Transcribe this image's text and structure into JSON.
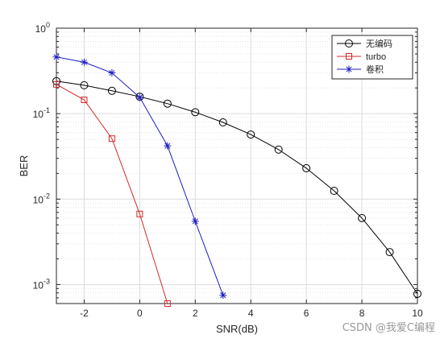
{
  "chart_data": {
    "type": "line",
    "xlabel": "SNR(dB)",
    "ylabel": "BER",
    "xlim": [
      -3,
      10
    ],
    "ylim": [
      0.0006,
      1
    ],
    "yscale": "log",
    "grid": true,
    "legend_position": "top-right",
    "x_ticks": [
      -2,
      0,
      2,
      4,
      6,
      8,
      10
    ],
    "y_ticks": [
      {
        "value": 0.001,
        "base": "10",
        "exp": "-3"
      },
      {
        "value": 0.01,
        "base": "10",
        "exp": "-2"
      },
      {
        "value": 0.1,
        "base": "10",
        "exp": "-1"
      },
      {
        "value": 1,
        "base": "10",
        "exp": "0"
      }
    ],
    "series": [
      {
        "name": "无编码",
        "color": "#000000",
        "marker": "circle",
        "x": [
          -3,
          -2,
          -1,
          0,
          1,
          2,
          3,
          4,
          5,
          6,
          7,
          8,
          9,
          10
        ],
        "y": [
          0.24,
          0.215,
          0.185,
          0.158,
          0.131,
          0.104,
          0.079,
          0.057,
          0.038,
          0.023,
          0.0125,
          0.006,
          0.0024,
          0.00078
        ]
      },
      {
        "name": "turbo",
        "color": "#d62728",
        "marker": "square",
        "x": [
          -3,
          -2,
          -1,
          0,
          1
        ],
        "y": [
          0.22,
          0.145,
          0.051,
          0.0067,
          0.0006
        ]
      },
      {
        "name": "卷积",
        "color": "#1f1fbf",
        "marker": "asterisk",
        "x": [
          -3,
          -2,
          -1,
          0,
          1,
          2,
          3
        ],
        "y": [
          0.46,
          0.4,
          0.3,
          0.155,
          0.042,
          0.0055,
          0.00075
        ]
      }
    ]
  },
  "watermark": "CSDN @我爱C编程"
}
